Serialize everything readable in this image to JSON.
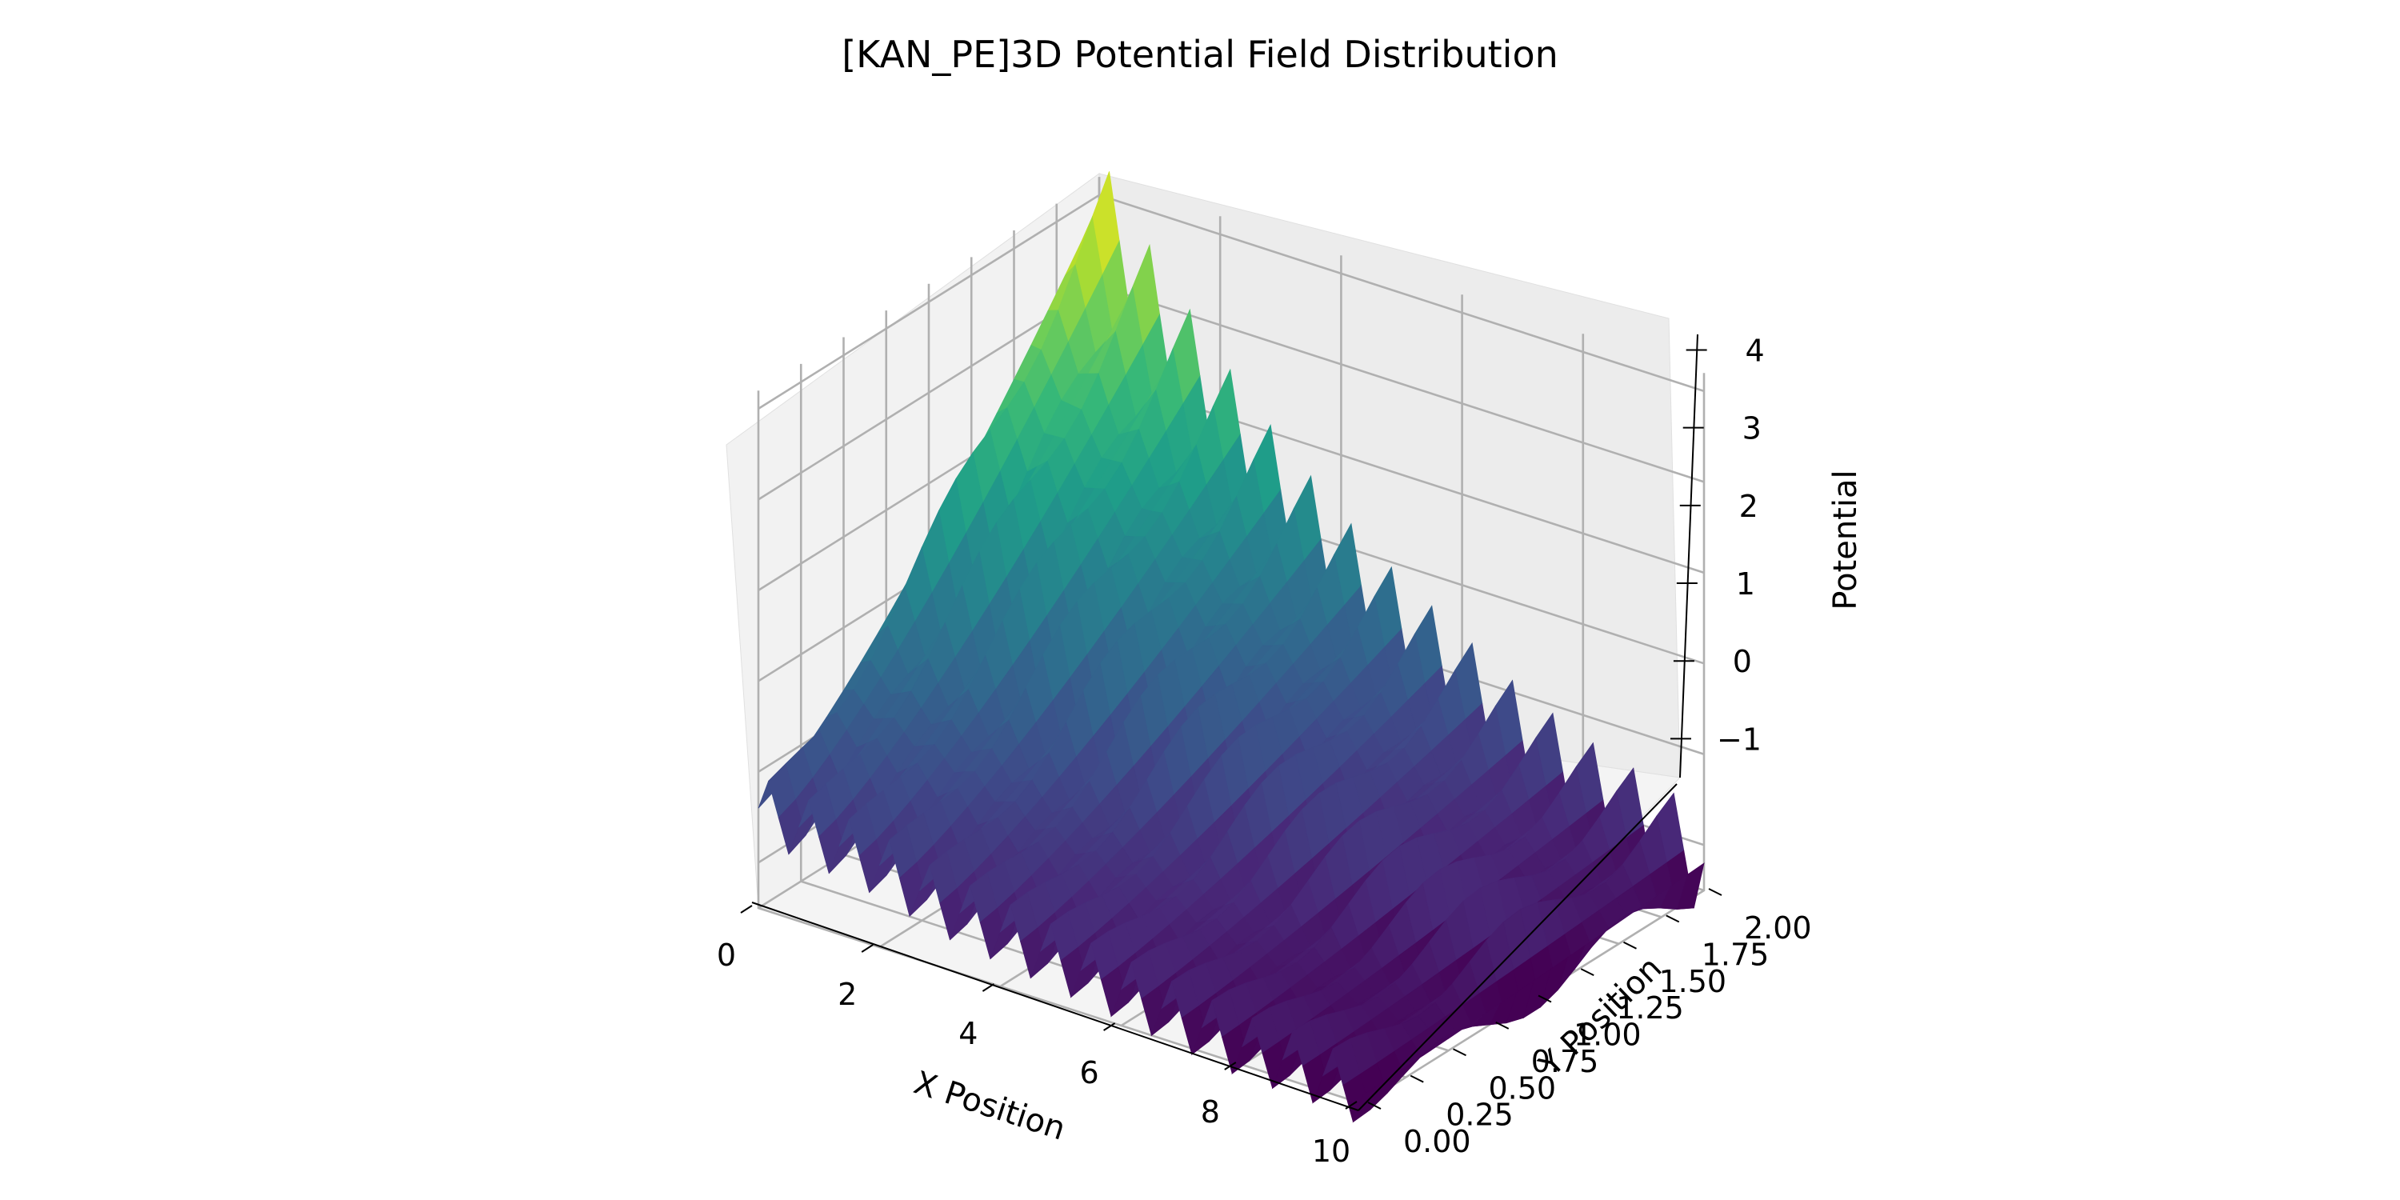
{
  "chart_data": {
    "type": "surface3d",
    "title": "[KAN_PE]3D Potential Field Distribution",
    "xlabel": "X Position",
    "ylabel": "Y Position",
    "zlabel": "Potential",
    "xlim": [
      0,
      10
    ],
    "ylim": [
      0,
      2
    ],
    "zlim": [
      -1.5,
      4.2
    ],
    "x_ticks": [
      "0",
      "2",
      "4",
      "6",
      "8",
      "10"
    ],
    "y_ticks": [
      "0.00",
      "0.25",
      "0.50",
      "0.75",
      "1.00",
      "1.25",
      "1.50",
      "1.75",
      "2.00"
    ],
    "z_ticks": [
      "−1",
      "0",
      "1",
      "2",
      "3",
      "4"
    ],
    "x_tick_values": [
      0,
      2,
      4,
      6,
      8,
      10
    ],
    "y_tick_values": [
      0,
      0.25,
      0.5,
      0.75,
      1.0,
      1.25,
      1.5,
      1.75,
      2.0
    ],
    "z_tick_values": [
      -1,
      0,
      1,
      2,
      3,
      4
    ],
    "colormap": "viridis",
    "grid": true,
    "surface_profile": {
      "description_x": [
        0,
        1,
        2,
        3,
        4,
        5,
        6,
        7,
        8,
        9,
        10
      ],
      "potential_at_y_max": [
        3.9,
        2.9,
        2.1,
        1.4,
        0.8,
        0.3,
        -0.1,
        -0.5,
        -0.8,
        -1.0,
        -1.2
      ],
      "potential_at_y_min": [
        -0.4,
        -0.5,
        -0.6,
        -0.8,
        -0.9,
        -1.0,
        -1.1,
        -1.2,
        -1.3,
        -1.3,
        -1.4
      ],
      "ridge_oscillation_count": 30
    }
  }
}
